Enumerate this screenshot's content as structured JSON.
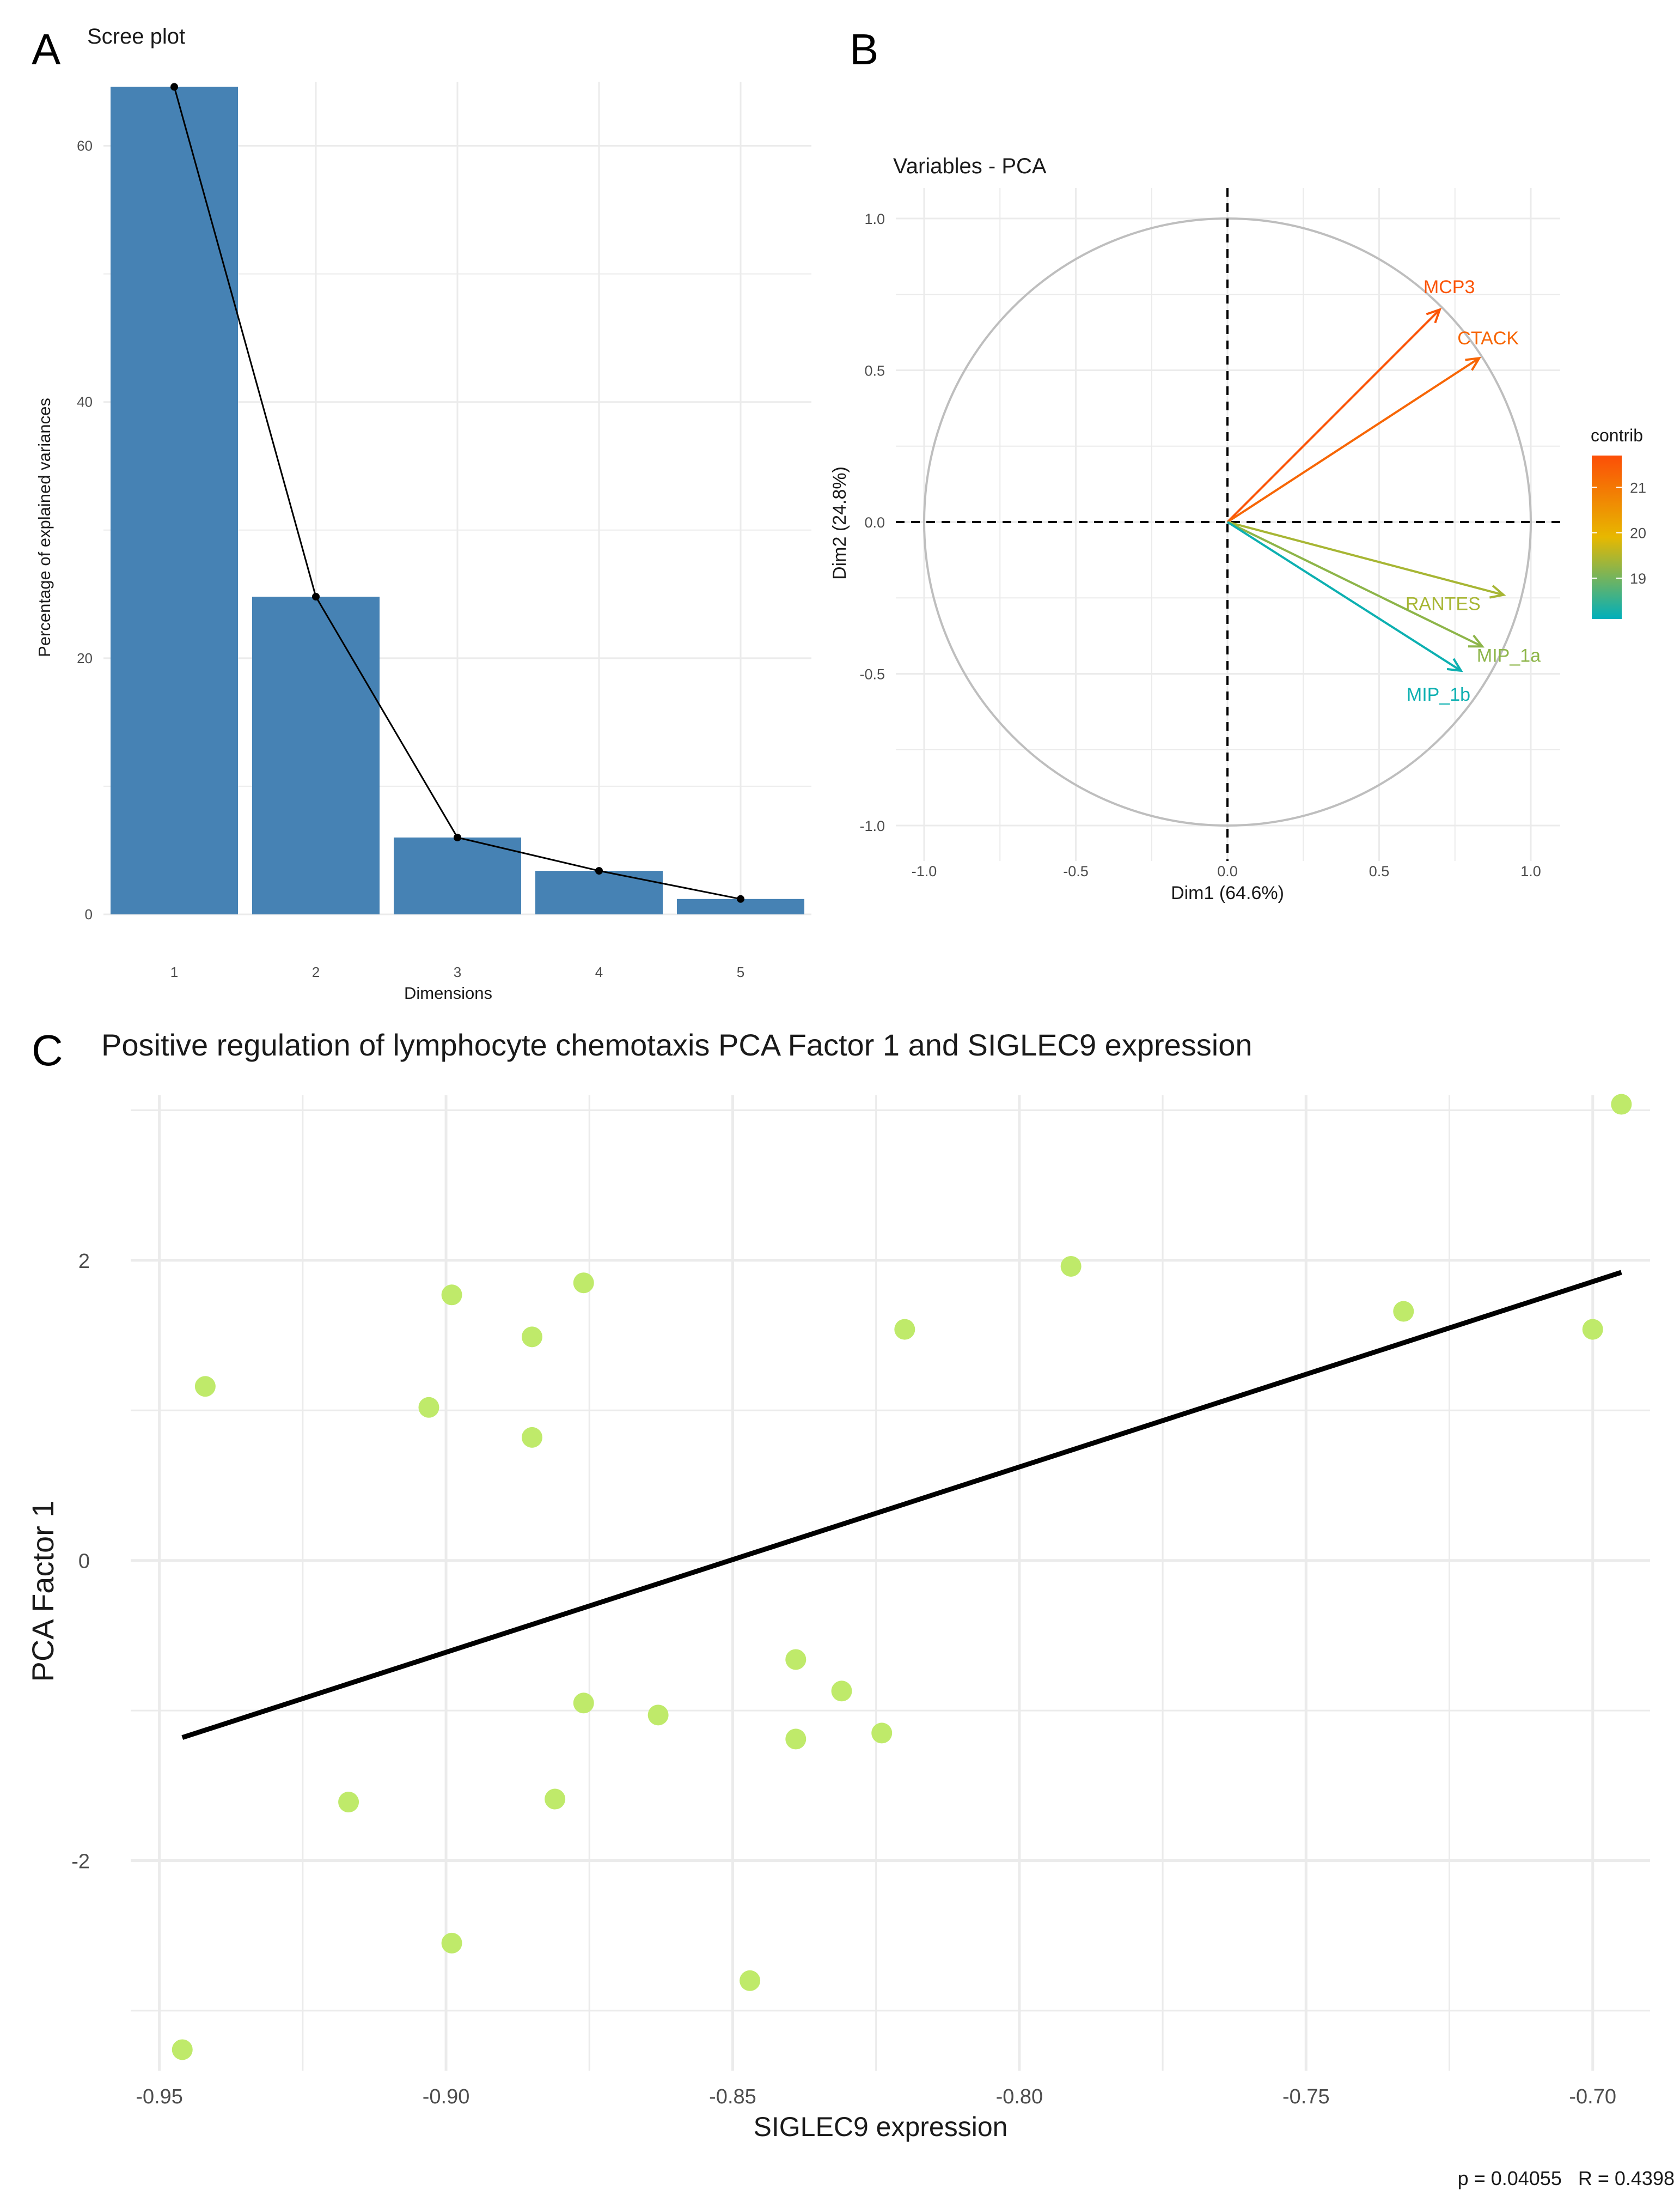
{
  "panels": {
    "a": "A",
    "b": "B",
    "c": "C"
  },
  "colors": {
    "bar_fill": "#4682B4",
    "grid": "#EBEBEB",
    "axis_text": "#4D4D4D",
    "title_text": "#1A1A1A",
    "circle": "#BEBEBE",
    "contrib_high": "#FC4E07",
    "contrib_mid": "#E7B800",
    "contrib_low": "#00AFBB",
    "point_fill": "#BFEA6A",
    "regression_line": "#000000"
  },
  "chart_data": [
    {
      "id": "scree",
      "type": "bar",
      "title": "Scree plot",
      "xlabel": "Dimensions",
      "ylabel": "Percentage of explained variances",
      "categories": [
        "1",
        "2",
        "3",
        "4",
        "5"
      ],
      "values": [
        64.6,
        24.8,
        6.0,
        3.4,
        1.2
      ],
      "line_overlay": true,
      "ylim": [
        0,
        65
      ],
      "yticks": [
        0,
        20,
        40,
        60
      ],
      "yticklabels": [
        "0",
        "20",
        "40",
        "60"
      ]
    },
    {
      "id": "pca_variables",
      "type": "scatter",
      "subtype": "correlation-circle",
      "title": "Variables - PCA",
      "xlabel": "Dim1 (64.6%)",
      "ylabel": "Dim2 (24.8%)",
      "xlim": [
        -1.0,
        1.0
      ],
      "ylim": [
        -1.0,
        1.0
      ],
      "xticks": [
        -1.0,
        -0.5,
        0.0,
        0.5,
        1.0
      ],
      "xticklabels": [
        "-1.0",
        "-0.5",
        "0.0",
        "0.5",
        "1.0"
      ],
      "yticks": [
        -1.0,
        -0.5,
        0.0,
        0.5,
        1.0
      ],
      "yticklabels": [
        "-1.0",
        "-0.5",
        "0.0",
        "0.5",
        "1.0"
      ],
      "vectors": [
        {
          "label": "MCP3",
          "x": 0.7,
          "y": 0.7,
          "contrib": 21.6
        },
        {
          "label": "CTACK",
          "x": 0.83,
          "y": 0.54,
          "contrib": 21.3
        },
        {
          "label": "RANTES",
          "x": 0.91,
          "y": -0.24,
          "contrib": 19.4
        },
        {
          "label": "MIP_1a",
          "x": 0.84,
          "y": -0.41,
          "contrib": 19.2
        },
        {
          "label": "MIP_1b",
          "x": 0.77,
          "y": -0.49,
          "contrib": 18.2
        }
      ],
      "legend": {
        "title": "contrib",
        "min": 18.1,
        "max": 21.7,
        "ticks": [
          19,
          20,
          21
        ],
        "ticklabels": [
          "19",
          "20",
          "21"
        ],
        "placement": "right"
      }
    },
    {
      "id": "siglec9",
      "type": "scatter",
      "title": "Positive regulation of lymphocyte chemotaxis PCA Factor 1 and SIGLEC9 expression",
      "xlabel": "SIGLEC9 expression",
      "ylabel": "PCA Factor 1",
      "xlim": [
        -0.955,
        -0.69
      ],
      "ylim": [
        -3.4,
        3.1
      ],
      "xticks": [
        -0.95,
        -0.9,
        -0.85,
        -0.8,
        -0.75,
        -0.7
      ],
      "xticklabels": [
        "-0.95",
        "-0.90",
        "-0.85",
        "-0.80",
        "-0.75",
        "-0.70"
      ],
      "yticks": [
        -2,
        0,
        2
      ],
      "yticklabels": [
        "-2",
        "0",
        "2"
      ],
      "points": [
        {
          "x": -0.942,
          "y": 1.16
        },
        {
          "x": -0.946,
          "y": -3.26
        },
        {
          "x": -0.917,
          "y": -1.61
        },
        {
          "x": -0.903,
          "y": 1.02
        },
        {
          "x": -0.899,
          "y": 1.77
        },
        {
          "x": -0.899,
          "y": -2.55
        },
        {
          "x": -0.885,
          "y": 1.49
        },
        {
          "x": -0.885,
          "y": 0.82
        },
        {
          "x": -0.881,
          "y": -1.59
        },
        {
          "x": -0.876,
          "y": 1.85
        },
        {
          "x": -0.876,
          "y": -0.95
        },
        {
          "x": -0.863,
          "y": -1.03
        },
        {
          "x": -0.847,
          "y": -2.8
        },
        {
          "x": -0.839,
          "y": -0.66
        },
        {
          "x": -0.839,
          "y": -1.19
        },
        {
          "x": -0.831,
          "y": -0.87
        },
        {
          "x": -0.824,
          "y": -1.15
        },
        {
          "x": -0.82,
          "y": 1.54
        },
        {
          "x": -0.791,
          "y": 1.96
        },
        {
          "x": -0.733,
          "y": 1.66
        },
        {
          "x": -0.7,
          "y": 1.54
        },
        {
          "x": -0.695,
          "y": 3.04
        }
      ],
      "regression": {
        "x1": -0.946,
        "y1": -1.18,
        "x2": -0.695,
        "y2": 1.92
      },
      "stats": "p = 0.04055   R = 0.4398"
    }
  ]
}
